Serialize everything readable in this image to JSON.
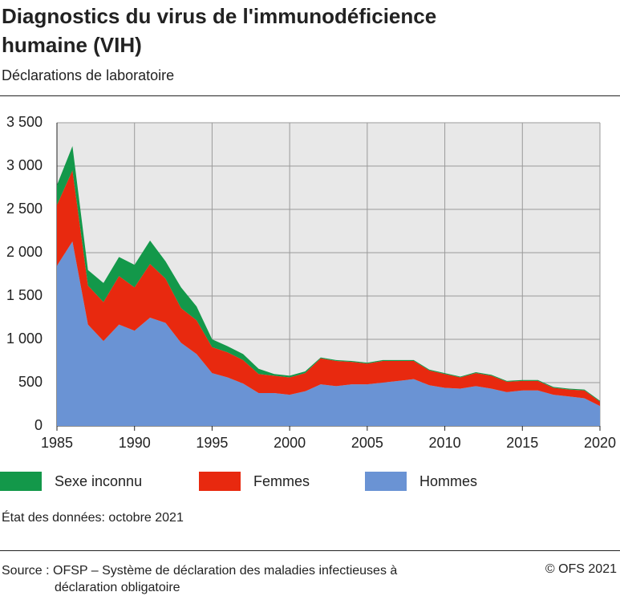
{
  "chart_data": {
    "type": "area",
    "stacked": true,
    "title": "Diagnostics du virus de l'immunodéficience humaine (VIH)",
    "subtitle": "Déclarations de laboratoire",
    "x": [
      1985,
      1986,
      1987,
      1988,
      1989,
      1990,
      1991,
      1992,
      1993,
      1994,
      1995,
      1996,
      1997,
      1998,
      1999,
      2000,
      2001,
      2002,
      2003,
      2004,
      2005,
      2006,
      2007,
      2008,
      2009,
      2010,
      2011,
      2012,
      2013,
      2014,
      2015,
      2016,
      2017,
      2018,
      2019,
      2020
    ],
    "series": [
      {
        "name": "Hommes",
        "color": "#6a93d4",
        "values": [
          1850,
          2130,
          1170,
          980,
          1170,
          1100,
          1250,
          1190,
          960,
          830,
          610,
          560,
          490,
          380,
          380,
          360,
          400,
          480,
          460,
          480,
          480,
          500,
          520,
          540,
          470,
          440,
          430,
          460,
          430,
          390,
          410,
          410,
          360,
          340,
          320,
          230
        ]
      },
      {
        "name": "Femmes",
        "color": "#e8290f",
        "values": [
          700,
          820,
          450,
          450,
          560,
          500,
          620,
          510,
          400,
          390,
          300,
          290,
          270,
          220,
          200,
          200,
          210,
          300,
          290,
          260,
          240,
          250,
          230,
          210,
          170,
          160,
          130,
          150,
          150,
          120,
          110,
          110,
          80,
          80,
          90,
          50
        ]
      },
      {
        "name": "Sexe inconnu",
        "color": "#13984a",
        "values": [
          230,
          280,
          180,
          220,
          220,
          260,
          270,
          200,
          240,
          160,
          90,
          70,
          70,
          60,
          20,
          20,
          20,
          10,
          10,
          10,
          10,
          10,
          10,
          10,
          10,
          10,
          10,
          10,
          10,
          10,
          10,
          10,
          10,
          10,
          10,
          10
        ]
      }
    ],
    "xlim": [
      1985,
      2020
    ],
    "xticks": [
      1985,
      1990,
      1995,
      2000,
      2005,
      2010,
      2015,
      2020
    ],
    "ylim": [
      0,
      3500
    ],
    "yticks": [
      0,
      500,
      {
        "value": 1000,
        "label": "1 000"
      },
      {
        "value": 1500,
        "label": "1 500"
      },
      {
        "value": 2000,
        "label": "2 000"
      },
      {
        "value": 2500,
        "label": "2 500"
      },
      {
        "value": 3000,
        "label": "3 000"
      },
      {
        "value": 3500,
        "label": "3 500"
      }
    ],
    "grid": true,
    "note": "État des données: octobre 2021",
    "source": "Source : OFSP – Système de déclaration des maladies infectieuses à déclaration obligatoire",
    "credit": "© OFS 2021"
  }
}
